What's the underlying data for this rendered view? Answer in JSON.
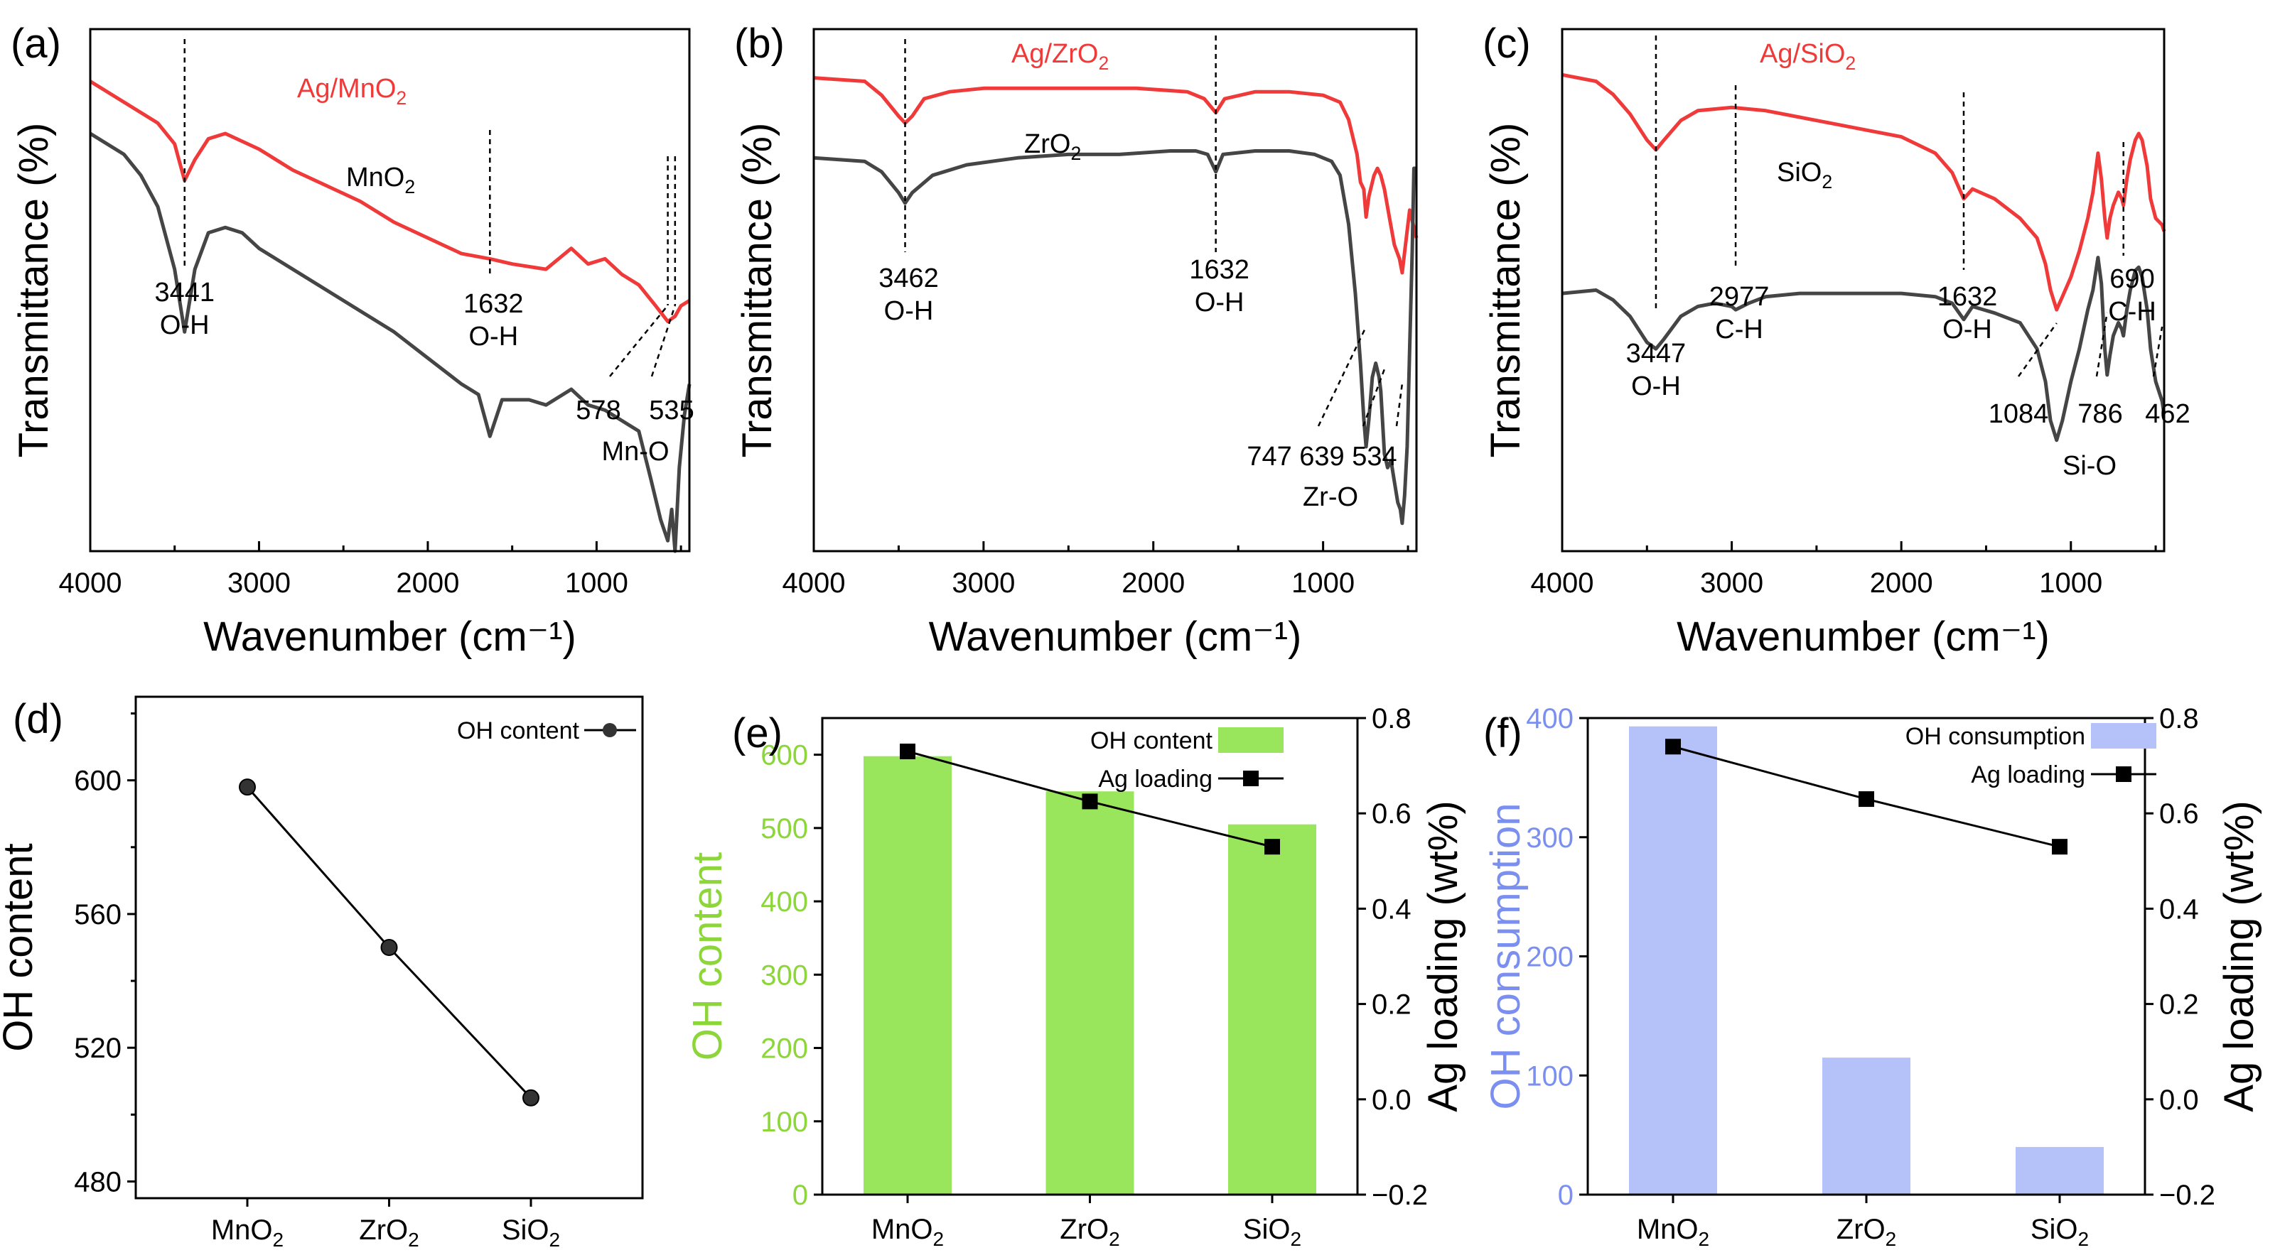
{
  "figure": {
    "letters": [
      "(a)",
      "(b)",
      "(c)",
      "(d)",
      "(e)",
      "(f)"
    ]
  },
  "chart_data": [
    {
      "panel": "(a)",
      "type": "line",
      "xlabel": "Wavenumber (cm⁻¹)",
      "ylabel": "Transmittance (%)",
      "xlim": [
        4000,
        450
      ],
      "xticks": [
        "4000",
        "3000",
        "2000",
        "1000"
      ],
      "series": [
        {
          "name": "Ag/MnO₂",
          "label_main": "Ag/MnO",
          "label_sub": "2",
          "color": "#f03a3a",
          "x": [
            4000,
            3800,
            3600,
            3500,
            3441,
            3380,
            3300,
            3200,
            3000,
            2800,
            2600,
            2400,
            2200,
            2000,
            1800,
            1632,
            1500,
            1300,
            1150,
            1050,
            950,
            850,
            750,
            650,
            578,
            535,
            500,
            450
          ],
          "y": [
            100,
            98,
            96,
            94,
            90.5,
            92.5,
            94.5,
            95,
            93.5,
            91.5,
            90,
            88.5,
            86.5,
            85,
            83.5,
            83,
            82.5,
            82,
            84,
            82.5,
            83,
            81.5,
            80.5,
            78.5,
            77,
            77.5,
            78.5,
            79
          ]
        },
        {
          "name": "MnO₂",
          "label_main": "MnO",
          "label_sub": "2",
          "color": "#454545",
          "x": [
            4000,
            3800,
            3700,
            3600,
            3500,
            3441,
            3380,
            3300,
            3200,
            3100,
            3000,
            2800,
            2600,
            2400,
            2200,
            2000,
            1800,
            1700,
            1632,
            1560,
            1400,
            1300,
            1150,
            1050,
            950,
            850,
            750,
            680,
            620,
            578,
            555,
            535,
            510,
            480,
            450
          ],
          "y": [
            95,
            93,
            91,
            88,
            82,
            76,
            82,
            85.5,
            86,
            85.5,
            84,
            82,
            80,
            78,
            76,
            73.5,
            71,
            70,
            66,
            69.5,
            69.5,
            69,
            70.5,
            69,
            68.5,
            67.5,
            66.5,
            62,
            58,
            56,
            59,
            55,
            63,
            68,
            71
          ]
        }
      ],
      "annotations": [
        {
          "line1": "3441",
          "line2": "O-H"
        },
        {
          "line1": "1632",
          "line2": "O-H"
        },
        {
          "line1": "578",
          "line2": ""
        },
        {
          "line1": "535",
          "line2": ""
        },
        {
          "line1": "Mn-O",
          "line2": ""
        }
      ]
    },
    {
      "panel": "(b)",
      "type": "line",
      "xlabel": "Wavenumber (cm⁻¹)",
      "ylabel": "Transmittance (%)",
      "xlim": [
        4000,
        450
      ],
      "xticks": [
        "4000",
        "3000",
        "2000",
        "1000"
      ],
      "series": [
        {
          "name": "Ag/ZrO₂",
          "label_main": "Ag/ZrO",
          "label_sub": "2",
          "color": "#f03a3a",
          "x": [
            4000,
            3700,
            3600,
            3500,
            3462,
            3420,
            3350,
            3200,
            3000,
            2700,
            2400,
            2100,
            1800,
            1700,
            1632,
            1580,
            1400,
            1200,
            1000,
            900,
            850,
            800,
            780,
            760,
            747,
            730,
            700,
            680,
            660,
            639,
            610,
            580,
            550,
            534,
            510,
            490,
            470,
            450
          ],
          "y": [
            93,
            92.5,
            90.5,
            87.5,
            86.5,
            87.5,
            90,
            91,
            91.5,
            91.5,
            91.5,
            91.5,
            91,
            90,
            88,
            90,
            91,
            91,
            90.5,
            89.5,
            87,
            82,
            78,
            77,
            73,
            76,
            79,
            80,
            79,
            77,
            73,
            69,
            67,
            65,
            70,
            74,
            72,
            70
          ]
        },
        {
          "name": "ZrO₂",
          "label_main": "ZrO",
          "label_sub": "2",
          "color": "#454545",
          "x": [
            4000,
            3700,
            3600,
            3500,
            3462,
            3420,
            3300,
            3100,
            2800,
            2500,
            2200,
            1900,
            1750,
            1680,
            1632,
            1590,
            1400,
            1200,
            1050,
            950,
            900,
            850,
            810,
            780,
            760,
            747,
            730,
            710,
            690,
            670,
            660,
            639,
            620,
            600,
            580,
            560,
            545,
            534,
            520,
            505,
            490,
            475,
            465,
            450
          ],
          "y": [
            81.5,
            81,
            79.5,
            76.5,
            75,
            76.5,
            79,
            80.5,
            81.5,
            82,
            82,
            82.5,
            82.5,
            82,
            79.5,
            82,
            82.5,
            82.5,
            82,
            81,
            79,
            72,
            62,
            52,
            44,
            40,
            44,
            50,
            52,
            50,
            48,
            39,
            37,
            38,
            35,
            32,
            31,
            29,
            33,
            40,
            54,
            68,
            80,
            80
          ]
        }
      ],
      "annotations": [
        {
          "line1": "3462",
          "line2": "O-H"
        },
        {
          "line1": "1632",
          "line2": "O-H"
        },
        {
          "line1": "747 639 534",
          "line2": ""
        },
        {
          "line1": "Zr-O",
          "line2": ""
        }
      ]
    },
    {
      "panel": "(c)",
      "type": "line",
      "xlabel": "Wavenumber (cm⁻¹)",
      "ylabel": "Transmittance (%)",
      "xlim": [
        4000,
        450
      ],
      "xticks": [
        "4000",
        "3000",
        "2000",
        "1000"
      ],
      "series": [
        {
          "name": "Ag/SiO₂",
          "label_main": "Ag/SiO",
          "label_sub": "2",
          "color": "#f03a3a",
          "x": [
            4000,
            3800,
            3700,
            3600,
            3500,
            3447,
            3400,
            3300,
            3200,
            3000,
            2800,
            2600,
            2400,
            2200,
            2000,
            1800,
            1700,
            1632,
            1580,
            1450,
            1300,
            1200,
            1150,
            1120,
            1084,
            1050,
            1000,
            950,
            900,
            870,
            840,
            820,
            800,
            786,
            770,
            750,
            720,
            700,
            690,
            670,
            650,
            620,
            600,
            580,
            550,
            530,
            500,
            462,
            450
          ],
          "y": [
            98,
            97,
            95,
            92,
            88,
            86.5,
            88,
            91,
            92.5,
            93,
            92.5,
            91.5,
            90.5,
            89.5,
            88.5,
            86,
            83,
            79,
            80.5,
            79,
            76,
            73,
            69,
            65,
            62,
            64,
            67,
            71,
            76,
            80,
            86,
            82,
            76,
            73,
            76,
            78,
            80,
            79,
            78,
            82,
            85,
            88,
            89,
            88,
            84,
            79,
            76,
            75,
            74
          ]
        },
        {
          "name": "SiO₂",
          "label_main": "SiO",
          "label_sub": "2",
          "color": "#454545",
          "x": [
            4000,
            3800,
            3700,
            3600,
            3500,
            3447,
            3400,
            3300,
            3200,
            3100,
            3000,
            2977,
            2900,
            2800,
            2600,
            2400,
            2200,
            2000,
            1800,
            1700,
            1632,
            1580,
            1450,
            1300,
            1200,
            1150,
            1120,
            1084,
            1050,
            1000,
            950,
            900,
            870,
            840,
            820,
            800,
            786,
            770,
            750,
            720,
            700,
            690,
            670,
            650,
            620,
            600,
            580,
            550,
            530,
            500,
            462,
            450
          ],
          "y": [
            64.5,
            65,
            63.5,
            61,
            57,
            56,
            57.5,
            61,
            62.5,
            63,
            62.5,
            62,
            63,
            64,
            64.5,
            64.5,
            64.5,
            64.5,
            64,
            63,
            60.5,
            62.5,
            61.5,
            60,
            56,
            51,
            45,
            42,
            45,
            51,
            56,
            62,
            65,
            70,
            66,
            56,
            52,
            55,
            58,
            60,
            59,
            58,
            62,
            65,
            68,
            68.5,
            67,
            62,
            56,
            51,
            48,
            46
          ]
        }
      ],
      "annotations": [
        {
          "line1": "3447",
          "line2": "O-H"
        },
        {
          "line1": "2977",
          "line2": "C-H"
        },
        {
          "line1": "1632",
          "line2": "O-H"
        },
        {
          "line1": "690",
          "line2": "C-H"
        },
        {
          "line1": "1084",
          "line2": ""
        },
        {
          "line1": "786",
          "line2": ""
        },
        {
          "line1": "462",
          "line2": ""
        },
        {
          "line1": "Si-O",
          "line2": ""
        }
      ]
    },
    {
      "panel": "(d)",
      "type": "line",
      "categories": [
        "MnO",
        "ZrO",
        "SiO"
      ],
      "category_sub": "2",
      "ylabel": "OH content",
      "ylim": [
        475,
        625
      ],
      "yticks": [
        480,
        520,
        560,
        600
      ],
      "legend": "OH content",
      "series": [
        {
          "name": "OH content",
          "values": [
            598,
            550,
            505
          ],
          "color": "#000000"
        }
      ]
    },
    {
      "panel": "(e)",
      "type": "bar",
      "categories": [
        "MnO",
        "ZrO",
        "SiO"
      ],
      "category_sub": "2",
      "ylabel": "OH content",
      "ylabel_color": "#8cd63a",
      "ylim": [
        0,
        650
      ],
      "yticks": [
        0,
        100,
        200,
        300,
        400,
        500,
        600
      ],
      "y2label": "Ag loading (wt%)",
      "y2lim": [
        -0.2,
        0.8
      ],
      "y2ticks": [
        "−0.2",
        "0.0",
        "0.2",
        "0.4",
        "0.6",
        "0.8"
      ],
      "legend": [
        "OH content",
        "Ag loading"
      ],
      "series": [
        {
          "name": "OH content",
          "values": [
            598,
            550,
            505
          ],
          "color": "#99e65c",
          "axis": "left"
        },
        {
          "name": "Ag loading",
          "values": [
            0.73,
            0.625,
            0.53
          ],
          "color": "#000000",
          "axis": "right"
        }
      ]
    },
    {
      "panel": "(f)",
      "type": "bar",
      "categories": [
        "MnO",
        "ZrO",
        "SiO"
      ],
      "category_sub": "2",
      "ylabel": "OH consumption",
      "ylabel_color": "#7a8ff0",
      "ylim": [
        0,
        400
      ],
      "yticks": [
        0,
        100,
        200,
        300,
        400
      ],
      "y2label": "Ag loading (wt%)",
      "y2lim": [
        -0.2,
        0.8
      ],
      "y2ticks": [
        "−0.2",
        "0.0",
        "0.2",
        "0.4",
        "0.6",
        "0.8"
      ],
      "legend": [
        "OH consumption",
        "Ag loading"
      ],
      "series": [
        {
          "name": "OH consumption",
          "values": [
            393,
            115,
            40
          ],
          "color": "#b5c2fa",
          "axis": "left"
        },
        {
          "name": "Ag loading",
          "values": [
            0.74,
            0.63,
            0.53
          ],
          "color": "#000000",
          "axis": "right"
        }
      ]
    }
  ]
}
